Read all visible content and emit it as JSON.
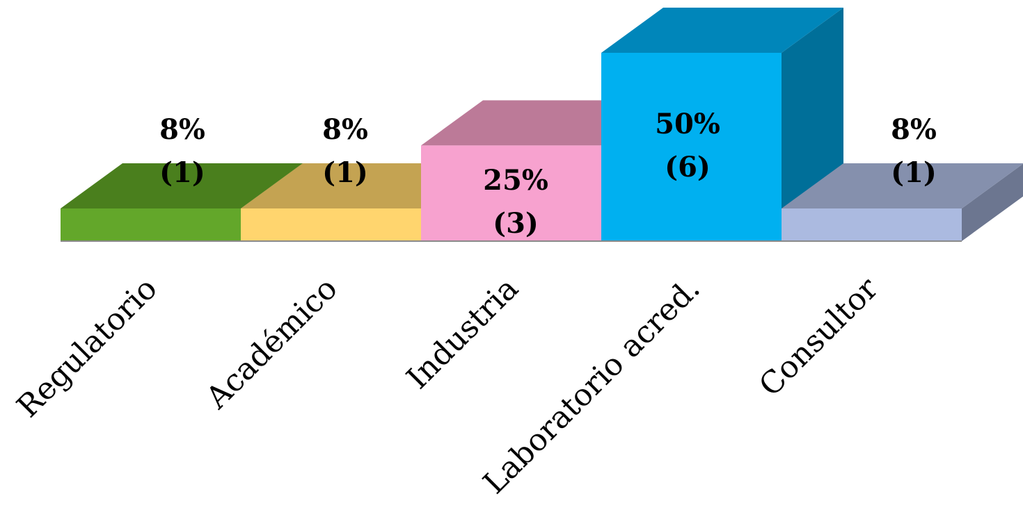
{
  "chart_data": {
    "type": "bar",
    "style": "3d-column",
    "categories": [
      "Regulatorio",
      "Académico",
      "Industria",
      "Laboratorio acred.",
      "Consultor"
    ],
    "values": [
      8,
      8,
      25,
      50,
      8
    ],
    "counts": [
      1,
      1,
      3,
      6,
      1
    ],
    "data_labels": [
      {
        "pct": "8%",
        "count": "(1)"
      },
      {
        "pct": "8%",
        "count": "(1)"
      },
      {
        "pct": "25%",
        "count": "(3)"
      },
      {
        "pct": "50%",
        "count": "(6)"
      },
      {
        "pct": "8%",
        "count": "(1)"
      }
    ],
    "colors": [
      {
        "front": "#63A72A",
        "top": "#4A7F1D",
        "side": "#3E6C18"
      },
      {
        "front": "#FFD56E",
        "top": "#C4A352",
        "side": "#A88A42"
      },
      {
        "front": "#F7A2CF",
        "top": "#BC7A98",
        "side": "#9E6680"
      },
      {
        "front": "#00B0F0",
        "top": "#0086BA",
        "side": "#006F99"
      },
      {
        "front": "#ABBAE0",
        "top": "#8590AD",
        "side": "#6C7690"
      }
    ],
    "xlabel": "",
    "ylabel": "",
    "ylim": [
      0,
      50
    ],
    "grid": false,
    "legend": "none"
  }
}
